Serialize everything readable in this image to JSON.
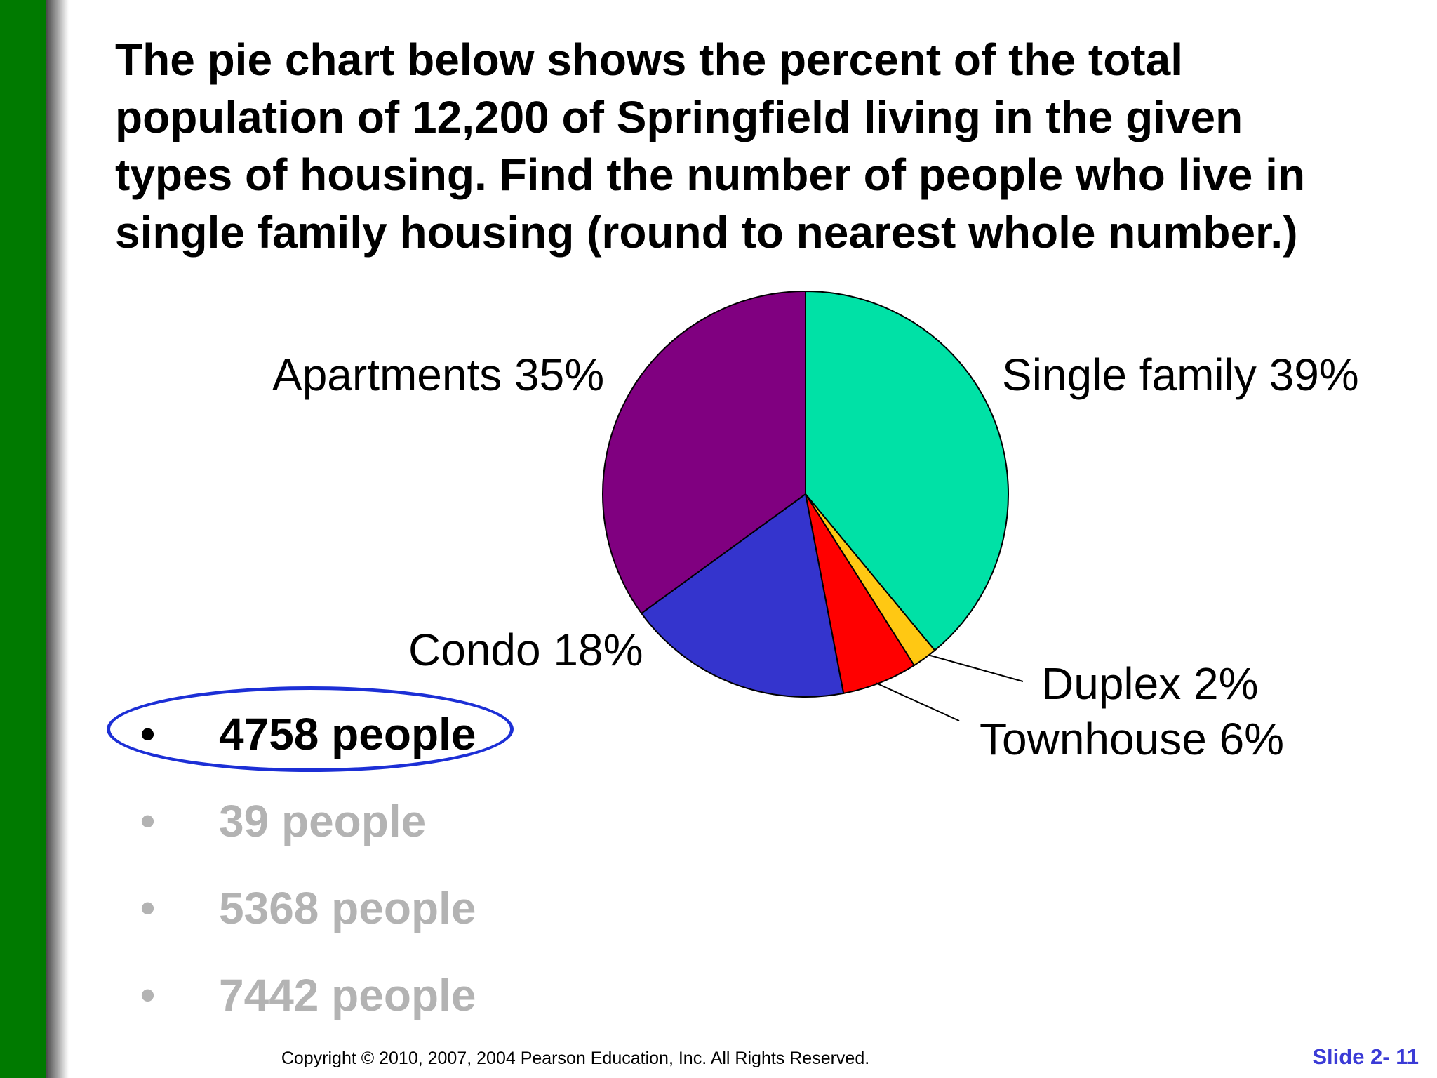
{
  "question": {
    "text": "The pie chart below shows the percent of the total population of 12,200 of Springfield living in the given types of housing.  Find the number of people who live in single family housing (round to nearest whole number.)"
  },
  "chart_data": {
    "type": "pie",
    "slices": [
      {
        "label": "Single family 39%",
        "value": 39,
        "color": "#00e1a6"
      },
      {
        "label": "Duplex 2%",
        "value": 2,
        "color": "#ffc813"
      },
      {
        "label": "Townhouse 6%",
        "value": 6,
        "color": "#ff0000"
      },
      {
        "label": "Condo 18%",
        "value": 18,
        "color": "#3434cd"
      },
      {
        "label": "Apartments 35%",
        "value": 35,
        "color": "#800080"
      }
    ]
  },
  "answers": [
    {
      "text": "4758 people",
      "selected": true
    },
    {
      "text": "39 people",
      "selected": false
    },
    {
      "text": "5368 people",
      "selected": false
    },
    {
      "text": "7442 people",
      "selected": false
    }
  ],
  "answer_bullet": "•",
  "footer": {
    "copyright": "Copyright © 2010, 2007, 2004 Pearson Education, Inc. All Rights Reserved.",
    "slide": "Slide 2- 11"
  },
  "colors": {
    "side_bar": "#007a00",
    "highlight_ring": "#1c2fd6",
    "slide_number": "#3b3bd6",
    "answer_dimmed": "#b3b3b3"
  }
}
